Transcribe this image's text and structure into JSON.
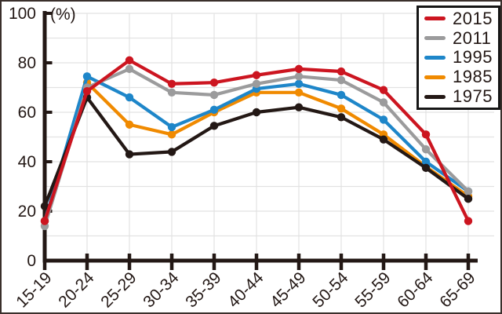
{
  "chart_data": {
    "type": "line",
    "title": "",
    "unit_label": "(%)",
    "xlabel": "",
    "ylabel": "",
    "ylim": [
      0,
      100
    ],
    "yticks": [
      0,
      20,
      40,
      60,
      80,
      100
    ],
    "grid": true,
    "grid_interval": 10,
    "legend_position": "top-right",
    "categories": [
      "15-19",
      "20-24",
      "25-29",
      "30-34",
      "35-39",
      "40-44",
      "45-49",
      "50-54",
      "55-59",
      "60-64",
      "65-69"
    ],
    "series": [
      {
        "name": "2015",
        "color": "#cc1520",
        "values": [
          16,
          68.5,
          81,
          71.5,
          72,
          75,
          77.5,
          76.5,
          69,
          51,
          16
        ]
      },
      {
        "name": "2011",
        "color": "#9b9b9c",
        "values": [
          14,
          70,
          77.5,
          68,
          67,
          71.5,
          74.5,
          73,
          64,
          45,
          28
        ]
      },
      {
        "name": "1995",
        "color": "#1e86c9",
        "values": [
          16,
          74.5,
          66,
          54,
          61,
          69.5,
          71.5,
          67,
          57,
          40,
          28
        ]
      },
      {
        "name": "1985",
        "color": "#f08a00",
        "values": [
          16,
          72,
          55,
          51,
          60,
          68,
          68,
          61.5,
          51,
          38,
          26
        ]
      },
      {
        "name": "1975",
        "color": "#231815",
        "values": [
          22,
          66,
          43,
          44,
          54.5,
          60,
          62,
          58,
          49,
          37.5,
          25
        ]
      }
    ],
    "paint_order_bottom_to_top": [
      "1985",
      "1995",
      "2011",
      "1975",
      "2015"
    ],
    "colors": {
      "axis": "#231815",
      "gridline": "#e2e2e2",
      "frame": "#3a2f2b",
      "legend_border": "#161616",
      "text": "#231815"
    }
  }
}
